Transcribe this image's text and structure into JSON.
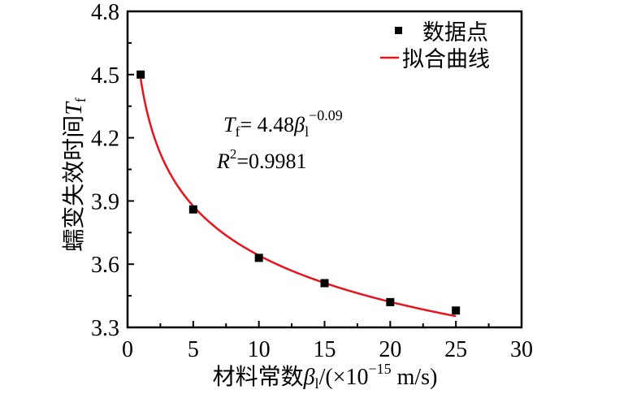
{
  "chart_data": {
    "type": "scatter",
    "xlabel": {
      "prefix": "材料常数",
      "beta": "β",
      "sub": "l",
      "unit_a": "/(×10",
      "exp": "−15",
      "unit_b": " m/s)"
    },
    "ylabel": {
      "prefix": "蠕变失效时间",
      "T": "T",
      "sub": "f"
    },
    "xlim": [
      0,
      30
    ],
    "ylim": [
      3.3,
      4.8
    ],
    "xticks": [
      "0",
      "5",
      "10",
      "15",
      "20",
      "25",
      "30"
    ],
    "yticks": [
      "3.3",
      "3.6",
      "3.9",
      "4.2",
      "4.5",
      "4.8"
    ],
    "grid": false,
    "legend_position": "top-right",
    "series": [
      {
        "name": "数据点",
        "kind": "scatter",
        "color": "#000000",
        "x": [
          1,
          5,
          10,
          15,
          20,
          25
        ],
        "y": [
          4.5,
          3.86,
          3.63,
          3.51,
          3.42,
          3.38
        ]
      },
      {
        "name": "拟合曲线",
        "kind": "line",
        "color": "#e8141c",
        "formula": {
          "a": 4.48,
          "b": -0.09
        },
        "xrange": [
          1,
          25
        ]
      }
    ],
    "annotation": {
      "eq_T": "T",
      "eq_sub": "f",
      "eq_mid": "= 4.48",
      "eq_beta": "β",
      "eq_beta_sub": "l",
      "eq_exp": "−0.09",
      "r2_R": "R",
      "r2_exp": "2",
      "r2_val": "=0.9981"
    }
  }
}
